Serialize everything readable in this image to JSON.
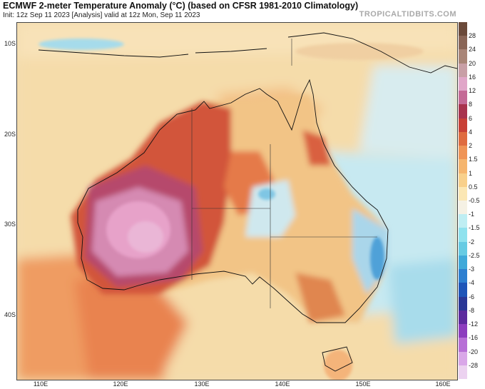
{
  "title": "ECMWF 2-meter Temperature Anomaly (°C) (based on CFSR 1981-2010 Climatology)",
  "subtitle": "Init: 12z Sep 11 2023   [Analysis]   valid at 12z Mon, Sep 11 2023",
  "brand": "TROPICALTIDBITS.COM",
  "lat_labels": [
    "10S",
    "20S",
    "30S",
    "40S"
  ],
  "lon_labels": [
    "110E",
    "120E",
    "130E",
    "140E",
    "150E",
    "160E"
  ],
  "colorbar": {
    "levels": [
      "28",
      "24",
      "20",
      "16",
      "12",
      "8",
      "6",
      "4",
      "2",
      "1.5",
      "1",
      "0.5",
      "-0.5",
      "-1",
      "-1.5",
      "-2",
      "-2.5",
      "-3",
      "-4",
      "-6",
      "-8",
      "-12",
      "-16",
      "-20",
      "-28"
    ],
    "colors": [
      "#6b4a3a",
      "#8a6657",
      "#a98577",
      "#c89fa6",
      "#e0a6c8",
      "#c46a96",
      "#a8334e",
      "#c84036",
      "#df6b3f",
      "#ef9456",
      "#f5b56e",
      "#f8d08b",
      "#fbe7b4",
      "#f5f1e4",
      "#bfeef3",
      "#8fe2ee",
      "#66cbe3",
      "#3fa9d9",
      "#2d7fd0",
      "#1e55b8",
      "#2a3796",
      "#5c2a9e",
      "#8c3dbe",
      "#b76fd6",
      "#d9a7e8",
      "#ecd2f0"
    ]
  }
}
